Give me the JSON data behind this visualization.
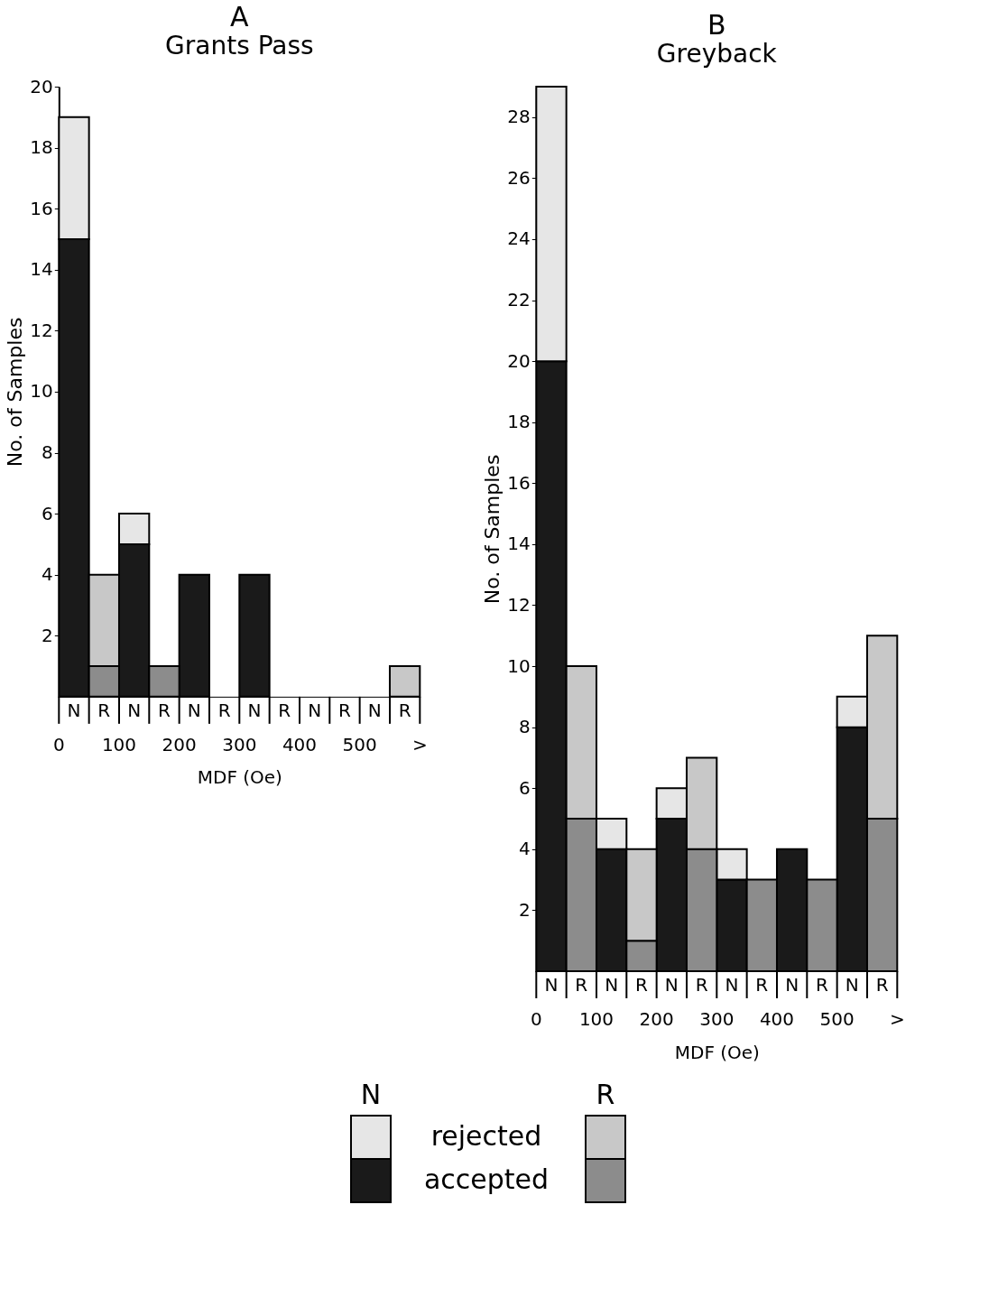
{
  "chart_data": [
    {
      "type": "bar",
      "stacked": true,
      "title": "A",
      "subtitle": "Grants Pass",
      "xlabel": "MDF (Oe)",
      "ylabel": "No. of Samples",
      "categories": [
        "N",
        "R",
        "N",
        "R",
        "N",
        "R",
        "N",
        "R",
        "N",
        "R",
        "N",
        "R"
      ],
      "annotations": [
        "0",
        "100",
        "200",
        "300",
        "400",
        "500",
        ">"
      ],
      "ylim": [
        0,
        20
      ],
      "yticks": [
        2,
        4,
        6,
        8,
        10,
        12,
        14,
        16,
        18,
        20
      ],
      "grid": false,
      "legend": "bottom",
      "series": [
        {
          "name": "accepted",
          "color": "#1a1a1a",
          "values": [
            15,
            null,
            5,
            null,
            4,
            null,
            4,
            null,
            null,
            null,
            null,
            null
          ]
        },
        {
          "name": "rejected",
          "color": "#e6e6e6",
          "values": [
            4,
            null,
            1,
            null,
            null,
            null,
            null,
            null,
            null,
            null,
            null,
            null
          ]
        },
        {
          "color": "#8c8c8c",
          "values": [
            null,
            1,
            null,
            1,
            null,
            null,
            null,
            null,
            null,
            null,
            null,
            null
          ]
        },
        {
          "color": "#c8c8c8",
          "values": [
            null,
            3,
            null,
            null,
            null,
            null,
            null,
            null,
            null,
            null,
            null,
            1
          ]
        }
      ]
    },
    {
      "type": "bar",
      "stacked": true,
      "title": "B",
      "subtitle": "Greyback",
      "xlabel": "MDF (Oe)",
      "ylabel": "No. of Samples",
      "categories": [
        "N",
        "R",
        "N",
        "R",
        "N",
        "R",
        "N",
        "R",
        "N",
        "R",
        "N",
        "R"
      ],
      "annotations": [
        "0",
        "100",
        "200",
        "300",
        "400",
        "500",
        ">"
      ],
      "ylim": [
        0,
        29
      ],
      "yticks": [
        2,
        4,
        6,
        8,
        10,
        12,
        14,
        16,
        18,
        20,
        22,
        24,
        26,
        28
      ],
      "grid": false,
      "series": [
        {
          "color": "#1a1a1a",
          "values": [
            20,
            null,
            4,
            null,
            5,
            null,
            3,
            null,
            4,
            null,
            8,
            null
          ]
        },
        {
          "color": "#e6e6e6",
          "values": [
            9,
            null,
            1,
            null,
            1,
            null,
            1,
            null,
            null,
            null,
            1,
            null
          ]
        },
        {
          "color": "#8c8c8c",
          "values": [
            null,
            5,
            null,
            1,
            null,
            4,
            null,
            3,
            null,
            3,
            null,
            5
          ]
        },
        {
          "color": "#c8c8c8",
          "values": [
            null,
            5,
            null,
            3,
            null,
            3,
            null,
            null,
            null,
            null,
            null,
            6
          ]
        }
      ]
    }
  ]
}
